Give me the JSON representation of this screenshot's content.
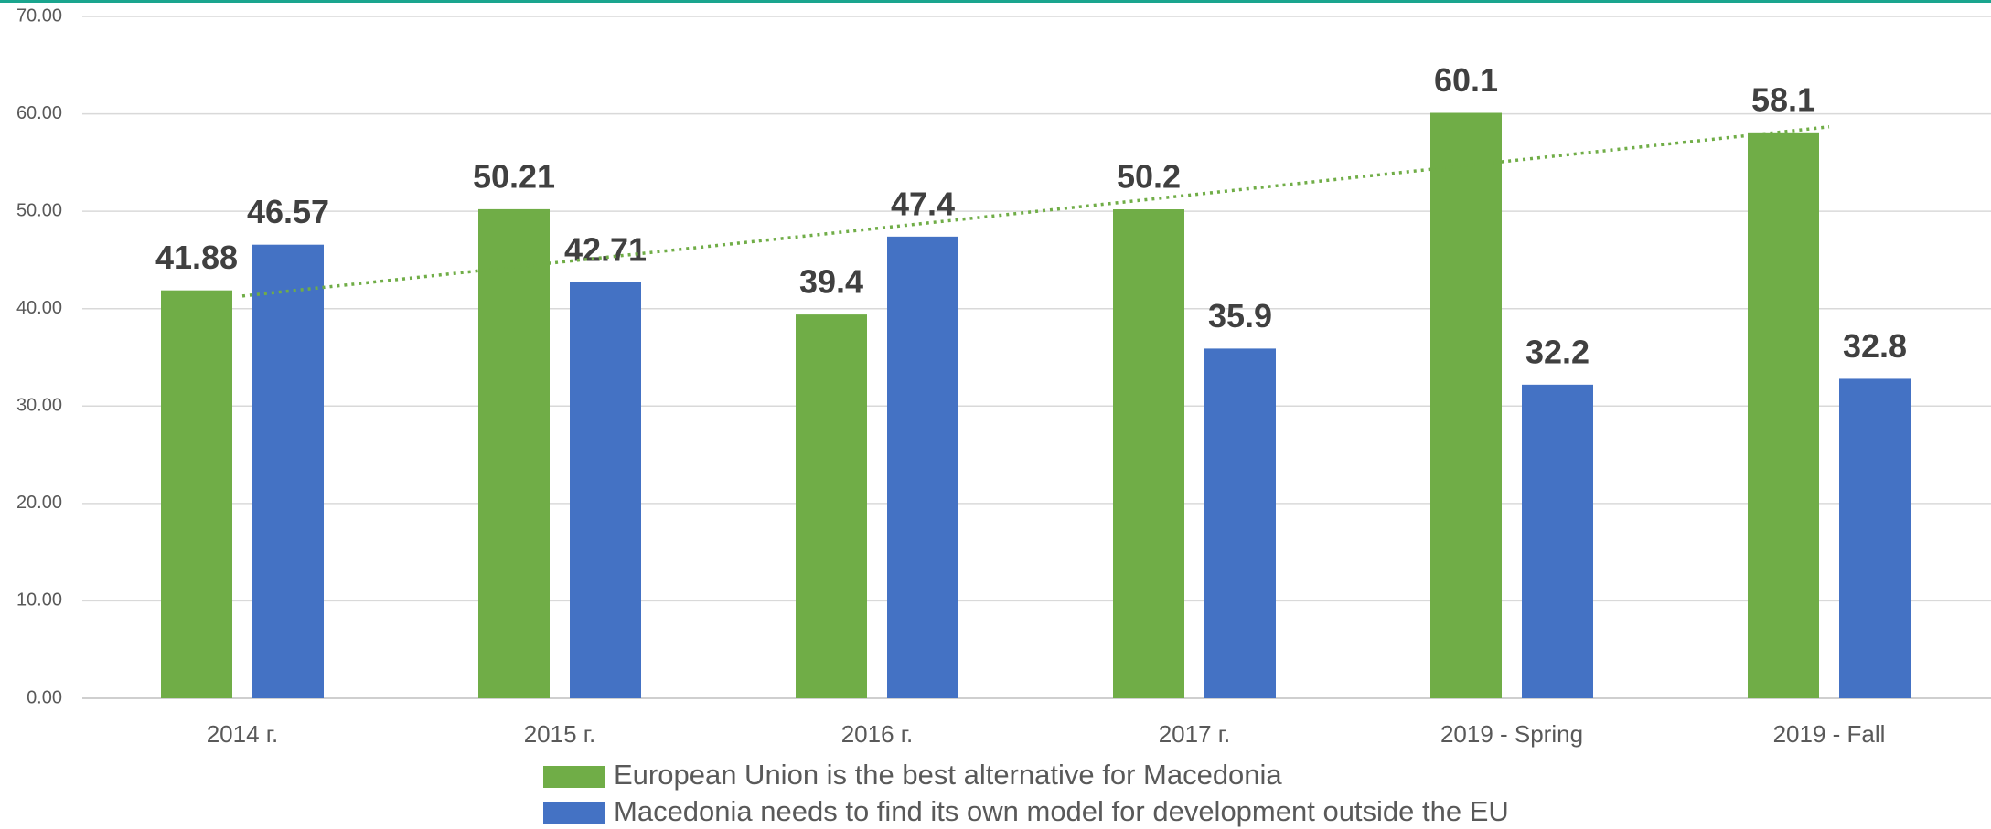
{
  "chart_data": {
    "type": "bar",
    "categories": [
      "2014 г.",
      "2015 г.",
      "2016 г.",
      "2017 г.",
      "2019 - Spring",
      "2019 - Fall"
    ],
    "series": [
      {
        "name": "European Union is the best alternative for Macedonia",
        "color": "#70ad47",
        "values": [
          41.88,
          50.21,
          39.4,
          50.2,
          60.1,
          58.1
        ]
      },
      {
        "name": "Macedonia needs to find its own model for development outside the EU",
        "color": "#4472c4",
        "values": [
          46.57,
          42.71,
          47.4,
          35.9,
          32.2,
          32.8
        ]
      }
    ],
    "trendline": {
      "series": 0,
      "type": "linear",
      "style": "dotted"
    },
    "ylim": [
      0,
      70
    ],
    "yticks": [
      {
        "value": 0,
        "label": "0.00"
      },
      {
        "value": 10,
        "label": "10.00"
      },
      {
        "value": 20,
        "label": "20.00"
      },
      {
        "value": 30,
        "label": "30.00"
      },
      {
        "value": 40,
        "label": "40.00"
      },
      {
        "value": 50,
        "label": "50.00"
      },
      {
        "value": 60,
        "label": "60.00"
      },
      {
        "value": 70,
        "label": "70.00"
      }
    ],
    "grid": true,
    "legend": "bottom"
  }
}
